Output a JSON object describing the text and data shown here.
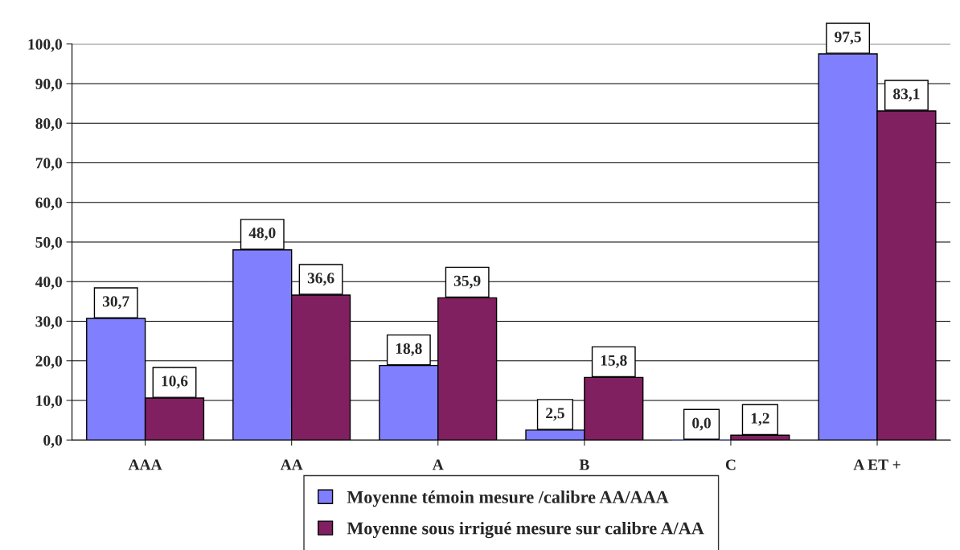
{
  "chart_data": {
    "type": "bar",
    "categories": [
      "AAA",
      "AA",
      "A",
      "B",
      "C",
      "A ET +"
    ],
    "series": [
      {
        "name": "Moyenne témoin mesure /calibre AA/AAA",
        "color": "#8080ff",
        "values": [
          30.7,
          48.0,
          18.8,
          2.5,
          0.0,
          97.5
        ],
        "value_labels": [
          "30,7",
          "48,0",
          "18,8",
          "2,5",
          "0,0",
          "97,5"
        ]
      },
      {
        "name": "Moyenne sous irrigué mesure sur calibre A/AA",
        "color": "#802060",
        "values": [
          10.6,
          36.6,
          35.9,
          15.8,
          1.2,
          83.1
        ],
        "value_labels": [
          "10,6",
          "36,6",
          "35,9",
          "15,8",
          "1,2",
          "83,1"
        ]
      }
    ],
    "ylim": [
      0,
      100
    ],
    "yticks": [
      {
        "value": 0,
        "label": "0,0"
      },
      {
        "value": 10,
        "label": "10,0"
      },
      {
        "value": 20,
        "label": "20,0"
      },
      {
        "value": 30,
        "label": "30,0"
      },
      {
        "value": 40,
        "label": "40,0"
      },
      {
        "value": 50,
        "label": "50,0"
      },
      {
        "value": 60,
        "label": "60,0"
      },
      {
        "value": 70,
        "label": "70,0"
      },
      {
        "value": 80,
        "label": "80,0"
      },
      {
        "value": 90,
        "label": "90,0"
      },
      {
        "value": 100,
        "label": "100,0"
      }
    ],
    "grid": "y",
    "legend": "bottom"
  }
}
